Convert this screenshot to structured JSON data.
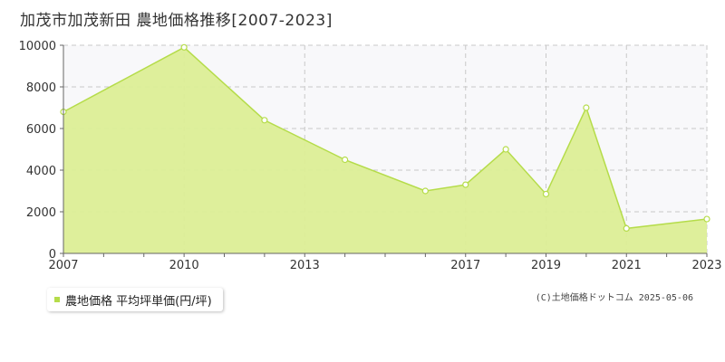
{
  "title": "加茂市加茂新田 農地価格推移[2007-2023]",
  "copyright": "(C)土地価格ドットコム 2025-05-06",
  "legend": {
    "label": "農地価格 平均坪単価(円/坪)",
    "position": "bottom-left"
  },
  "colors": {
    "fill": "#dcee96",
    "line": "#b5dc4a",
    "marker": "#b5dc4a",
    "grid": "#c8c8c8",
    "plot_bg": "#f8f8fa"
  },
  "chart_data": {
    "type": "area",
    "title": "加茂市加茂新田 農地価格推移[2007-2023]",
    "xlabel": "",
    "ylabel": "",
    "xlim": [
      2007,
      2023
    ],
    "ylim": [
      0,
      10000
    ],
    "yticks": [
      0,
      2000,
      4000,
      6000,
      8000,
      10000
    ],
    "xticks": [
      2007,
      2010,
      2013,
      2017,
      2019,
      2021,
      2023
    ],
    "grid": true,
    "legend": "bottom-left",
    "series": [
      {
        "name": "農地価格 平均坪単価(円/坪)",
        "x": [
          2007,
          2010,
          2012,
          2014,
          2016,
          2017,
          2018,
          2019,
          2020,
          2021,
          2023
        ],
        "y": [
          6800,
          9900,
          6400,
          4500,
          3000,
          3300,
          5000,
          2850,
          7000,
          1200,
          1650
        ]
      }
    ]
  }
}
